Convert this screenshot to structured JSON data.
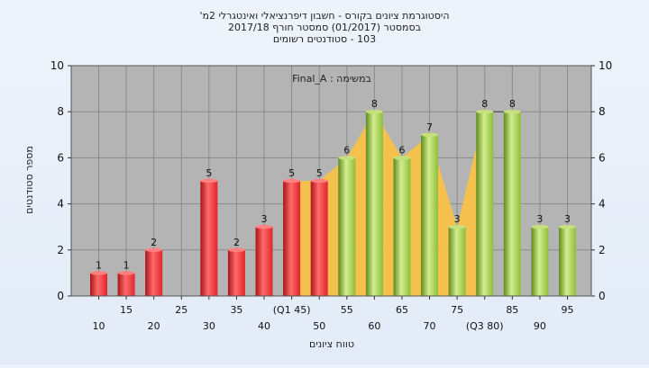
{
  "chart_data": {
    "type": "bar",
    "title_lines": [
      "היסטוגרמת ציונים בקורס - חשבון דיפרנציאלי ואינטגרלי 2מ'",
      "בסמסטר  (01/2017)  סמסטר חורף  2017/18",
      "103 - סטודנטים רשומים"
    ],
    "annotation": "במשימה : Final_A",
    "xlabel": "טווח ציונים",
    "ylabel": "מספר סטודנטים",
    "ylim": [
      0,
      10
    ],
    "yticks": [
      0,
      2,
      4,
      6,
      8,
      10
    ],
    "grid": true,
    "categories": [
      "10",
      "15",
      "20",
      "25",
      "30",
      "35",
      "40",
      "45",
      "50",
      "55",
      "60",
      "65",
      "70",
      "75",
      "80",
      "85",
      "90",
      "95"
    ],
    "category_labels": [
      "10",
      "15",
      "20",
      "25",
      "30",
      "35",
      "40",
      "(Q1 45)",
      "50",
      "55",
      "60",
      "65",
      "70",
      "75",
      "(Q3 80)",
      "85",
      "90",
      "95"
    ],
    "values": [
      1,
      1,
      2,
      0,
      5,
      2,
      3,
      5,
      5,
      6,
      8,
      6,
      7,
      3,
      8,
      8,
      3,
      3
    ],
    "data_labels": [
      "1",
      "1",
      "2",
      "",
      "5",
      "2",
      "3",
      "5",
      "5",
      "6",
      "8",
      "6",
      "7",
      "3",
      "8",
      "8",
      "3",
      "3"
    ],
    "bar_colors": [
      "#e0262c",
      "#e0262c",
      "#e0262c",
      "#e0262c",
      "#e0262c",
      "#e0262c",
      "#e0262c",
      "#e0262c",
      "#e0262c",
      "#8fbd3a",
      "#8fbd3a",
      "#8fbd3a",
      "#8fbd3a",
      "#8fbd3a",
      "#8fbd3a",
      "#8fbd3a",
      "#8fbd3a",
      "#8fbd3a"
    ],
    "iqr_area": {
      "from_category": "45",
      "to_category": "80",
      "color": "#f8c24a"
    },
    "colors": {
      "plot_background": "#b4b4b4",
      "grid": "#8a8a8a",
      "red_bar": "#e0262c",
      "green_bar": "#8fbd3a",
      "area": "#f8c24a"
    }
  }
}
